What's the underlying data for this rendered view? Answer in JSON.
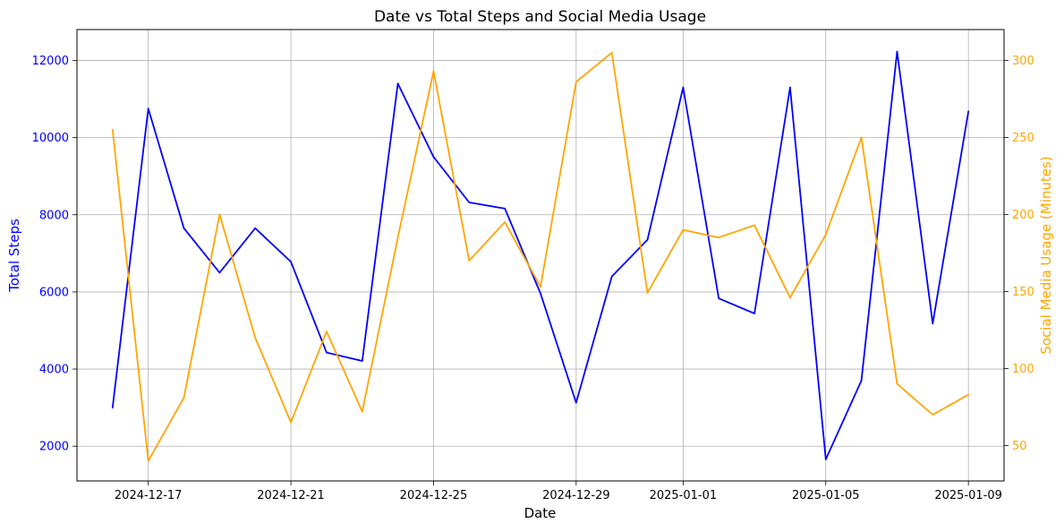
{
  "chart_data": {
    "type": "line",
    "title": "Date vs Total Steps and Social Media Usage",
    "xlabel": "Date",
    "ylabel_left": "Total Steps",
    "ylabel_right": "Social Media Usage (Minutes)",
    "x_tick_labels": [
      "2024-12-17",
      "2024-12-21",
      "2024-12-25",
      "2024-12-29",
      "2025-01-01",
      "2025-01-05",
      "2025-01-09"
    ],
    "x": [
      "2024-12-16",
      "2024-12-17",
      "2024-12-18",
      "2024-12-19",
      "2024-12-20",
      "2024-12-21",
      "2024-12-22",
      "2024-12-23",
      "2024-12-24",
      "2024-12-25",
      "2024-12-26",
      "2024-12-27",
      "2024-12-28",
      "2024-12-29",
      "2024-12-30",
      "2024-12-31",
      "2025-01-01",
      "2025-01-02",
      "2025-01-03",
      "2025-01-04",
      "2025-01-05",
      "2025-01-06",
      "2025-01-07",
      "2025-01-08",
      "2025-01-09"
    ],
    "xlim": [
      "2024-12-15",
      "2025-01-10"
    ],
    "ylim_left": [
      1100,
      12800
    ],
    "ylim_right": [
      27,
      320
    ],
    "y_ticks_left": [
      2000,
      4000,
      6000,
      8000,
      10000,
      12000
    ],
    "y_ticks_right": [
      50,
      100,
      150,
      200,
      250,
      300
    ],
    "grid": true,
    "series": [
      {
        "name": "Total Steps",
        "axis": "left",
        "color": "#0000ff",
        "values": [
          3000,
          10750,
          7650,
          6500,
          7650,
          6780,
          4430,
          4210,
          11400,
          9500,
          8320,
          8160,
          5960,
          3130,
          6400,
          7350,
          11300,
          5830,
          5440,
          11300,
          1660,
          3700,
          12230,
          5180,
          10680
        ]
      },
      {
        "name": "Social Media Usage (Minutes)",
        "axis": "right",
        "color": "#ffa500",
        "values": [
          255,
          40,
          81,
          200,
          120,
          65,
          124,
          72,
          185,
          293,
          170,
          195,
          153,
          286,
          305,
          149,
          190,
          185,
          193,
          146,
          187,
          250,
          90,
          70,
          83
        ]
      }
    ]
  }
}
